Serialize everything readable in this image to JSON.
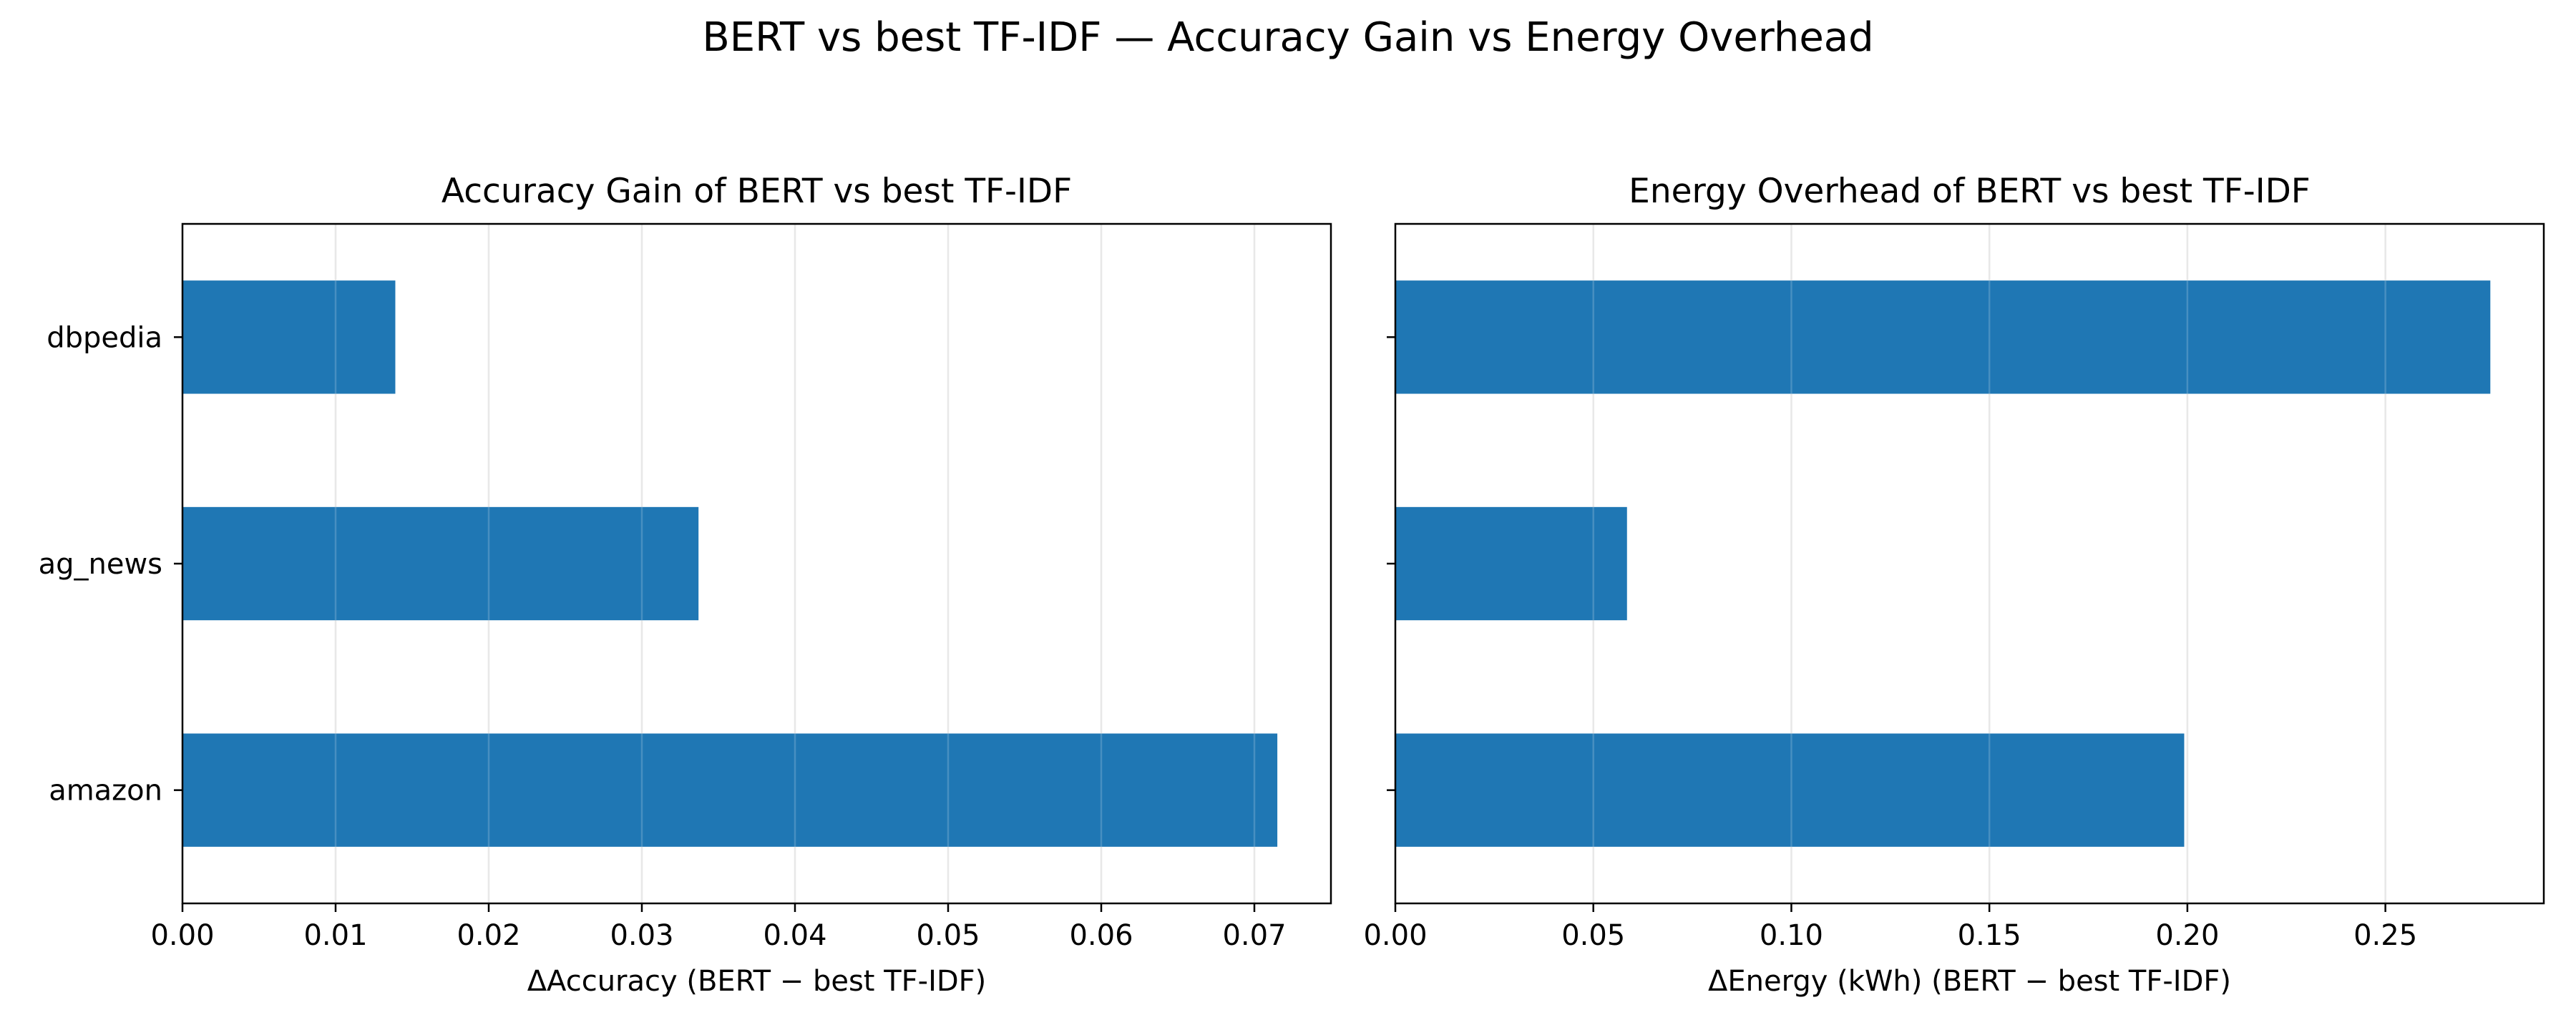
{
  "figure": {
    "title": "BERT vs best TF-IDF — Accuracy Gain vs Energy Overhead"
  },
  "colors": {
    "bar": "#1f77b4",
    "grid": "#e3e3e3",
    "axis": "#000000"
  },
  "chart_data": [
    {
      "type": "bar",
      "orientation": "horizontal",
      "title": "Accuracy Gain of BERT vs best TF-IDF",
      "xlabel": "ΔAccuracy (BERT − best TF-IDF)",
      "ylabel": "",
      "categories": [
        "dbpedia",
        "ag_news",
        "amazon"
      ],
      "values": [
        0.0139,
        0.0337,
        0.0715
      ],
      "xlim": [
        0,
        0.075
      ],
      "xticks": [
        0.0,
        0.01,
        0.02,
        0.03,
        0.04,
        0.05,
        0.06,
        0.07
      ],
      "xtick_labels": [
        "0.00",
        "0.01",
        "0.02",
        "0.03",
        "0.04",
        "0.05",
        "0.06",
        "0.07"
      ],
      "grid": "x"
    },
    {
      "type": "bar",
      "orientation": "horizontal",
      "title": "Energy Overhead of BERT vs best TF-IDF",
      "xlabel": "ΔEnergy (kWh) (BERT − best TF-IDF)",
      "ylabel": "",
      "categories": [
        "dbpedia",
        "ag_news",
        "amazon"
      ],
      "values": [
        0.2765,
        0.0585,
        0.1992
      ],
      "xlim": [
        0,
        0.29
      ],
      "xticks": [
        0.0,
        0.05,
        0.1,
        0.15,
        0.2,
        0.25
      ],
      "xtick_labels": [
        "0.00",
        "0.05",
        "0.10",
        "0.15",
        "0.20",
        "0.25"
      ],
      "grid": "x"
    }
  ]
}
